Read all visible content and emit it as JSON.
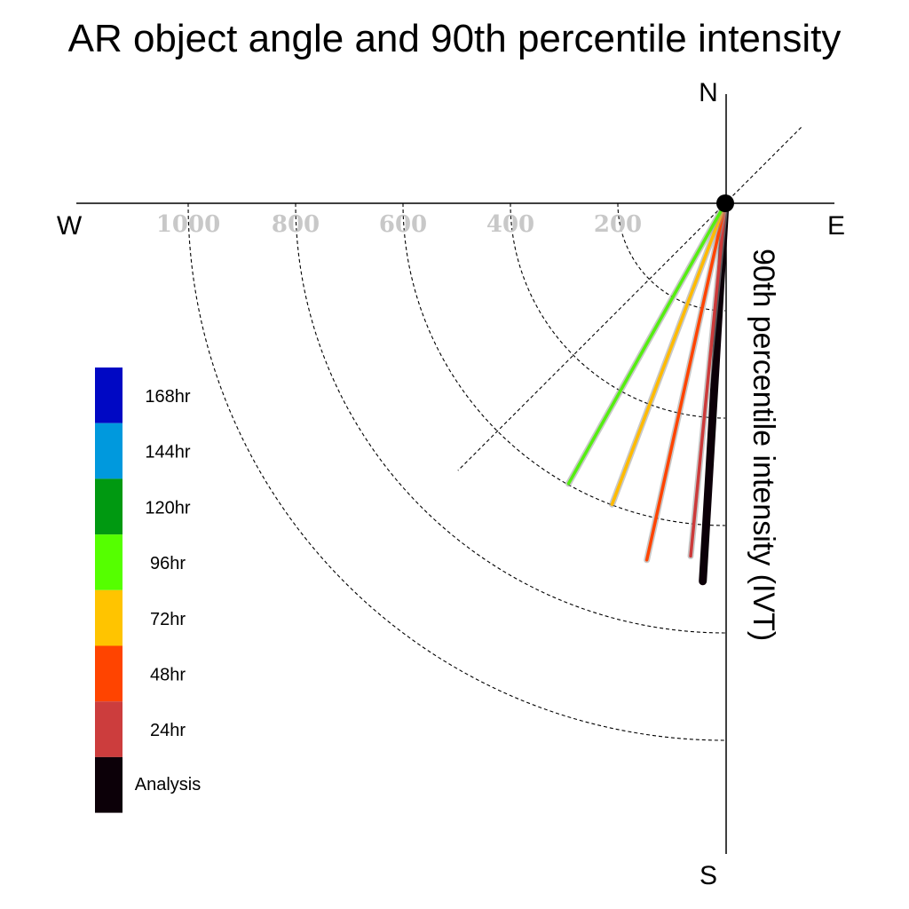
{
  "chart_data": {
    "type": "polar-vector",
    "title": "AR object angle and 90th percentile intensity",
    "axis_label": "90th percentile intensity (IVT)",
    "compass": {
      "north": "N",
      "south": "S",
      "east": "E",
      "west": "W"
    },
    "radial_ticks": [
      200,
      400,
      600,
      800,
      1000
    ],
    "radial_max": 1150,
    "series": [
      {
        "name": "Analysis",
        "angle_deg": 183.4,
        "magnitude": 705,
        "color": "#0c0008"
      },
      {
        "name": "24hr",
        "angle_deg": 185.6,
        "magnitude": 660,
        "color": "#cc3a3a"
      },
      {
        "name": "48hr",
        "angle_deg": 192.4,
        "magnitude": 680,
        "color": "#ff4400"
      },
      {
        "name": "72hr",
        "angle_deg": 200.6,
        "magnitude": 599,
        "color": "#ffbb00"
      },
      {
        "name": "96hr",
        "angle_deg": 209.2,
        "magnitude": 598,
        "color": "#55ee11"
      }
    ],
    "legend": [
      {
        "label": "168hr",
        "color": "#0008c4"
      },
      {
        "label": "144hr",
        "color": "#0099dd"
      },
      {
        "label": "120hr",
        "color": "#009911"
      },
      {
        "label": "96hr",
        "color": "#55ff00"
      },
      {
        "label": "72hr",
        "color": "#ffc400"
      },
      {
        "label": "48hr",
        "color": "#ff4400"
      },
      {
        "label": "24hr",
        "color": "#cc3d3d"
      },
      {
        "label": "Analysis",
        "color": "#0c0008"
      }
    ]
  }
}
